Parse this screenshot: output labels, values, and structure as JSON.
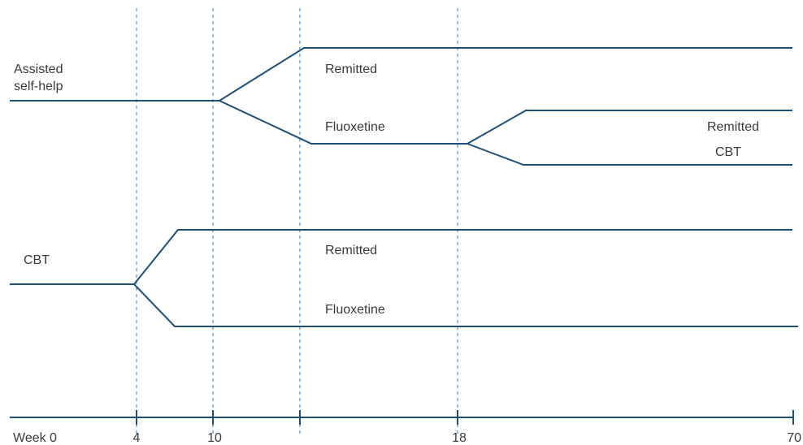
{
  "colors": {
    "path": "#1d4f7a",
    "guide": "#4a90c8",
    "text": "#3a3a3a"
  },
  "arms": {
    "assisted": {
      "start_label_line1": "Assisted",
      "start_label_line2": "self-help",
      "branch1_upper": "Remitted",
      "branch1_lower": "Fluoxetine",
      "branch2_upper": "Remitted",
      "branch2_lower": "CBT"
    },
    "cbt": {
      "start_label": "CBT",
      "branch_upper": "Remitted",
      "branch_lower": "Fluoxetine"
    }
  },
  "timeline": {
    "ticks": [
      "Week 0",
      "4",
      "10",
      "18",
      "70"
    ]
  }
}
